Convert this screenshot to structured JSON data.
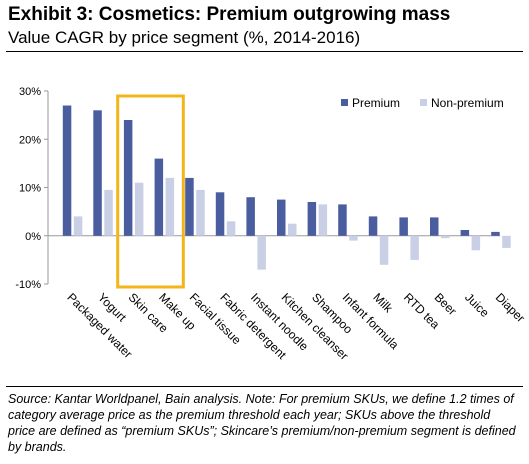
{
  "header": {
    "title": "Exhibit 3: Cosmetics: Premium outgrowing mass",
    "subtitle": "Value CAGR by price segment (%, 2014-2016)"
  },
  "footer": {
    "source": "Source: Kantar Worldpanel, Bain analysis. Note: For premium SKUs, we define 1.2 times of category average price as the premium threshold each year; SKUs above the threshold price are defined as “premium SKUs”; Skincare’s premium/non-premium segment is defined by brands."
  },
  "colors": {
    "premium": "#4a5e9f",
    "non_premium": "#c9d0e6",
    "highlight": "#f2b619",
    "axis": "#9a9a9a"
  },
  "chart_data": {
    "type": "bar",
    "categories": [
      "Packaged water",
      "Yogurt",
      "Skin care",
      "Make up",
      "Facial tissue",
      "Fabric detergent",
      "Instant noodle",
      "Kitchen cleanser",
      "Shampoo",
      "Infant formula",
      "Milk",
      "RTD tea",
      "Beer",
      "Juice",
      "Diaper"
    ],
    "series": [
      {
        "name": "Premium",
        "values": [
          27,
          26,
          24,
          16,
          12,
          9,
          8,
          7.5,
          7,
          6.5,
          4,
          3.8,
          3.8,
          1.2,
          0.8
        ]
      },
      {
        "name": "Non-premium",
        "values": [
          4,
          9.5,
          11,
          12,
          9.5,
          3,
          -7,
          2.5,
          6.5,
          -1,
          -6,
          -5,
          -0.5,
          -3,
          -2.5
        ]
      }
    ],
    "ylim": [
      -10,
      30
    ],
    "yticks": [
      30,
      20,
      10,
      0,
      -10
    ],
    "ytick_labels": [
      "30%",
      "20%",
      "10%",
      "0%",
      "-10%"
    ],
    "grid": false,
    "legend_position": "top-right",
    "highlighted_categories": [
      "Skin care",
      "Make up"
    ]
  }
}
